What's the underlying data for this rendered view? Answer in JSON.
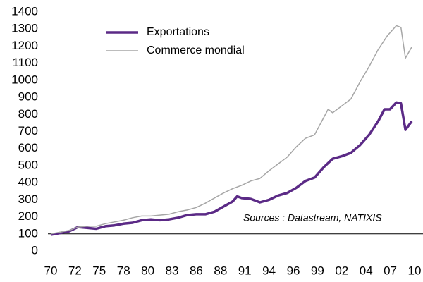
{
  "chart_data": {
    "type": "line",
    "annotation": "Sources : Datastream, NATIXIS",
    "legend": "top-left",
    "reference_line": 100,
    "xlim": [
      1970,
      2010
    ],
    "xticks": [
      {
        "value": 1970,
        "label": "70"
      },
      {
        "value": 1972.67,
        "label": "72"
      },
      {
        "value": 1975.33,
        "label": "75"
      },
      {
        "value": 1978,
        "label": "78"
      },
      {
        "value": 1980.67,
        "label": "80"
      },
      {
        "value": 1983.33,
        "label": "83"
      },
      {
        "value": 1986,
        "label": "86"
      },
      {
        "value": 1988.67,
        "label": "88"
      },
      {
        "value": 1991.33,
        "label": "91"
      },
      {
        "value": 1994,
        "label": "94"
      },
      {
        "value": 1996.67,
        "label": "96"
      },
      {
        "value": 1999.33,
        "label": "99"
      },
      {
        "value": 2002,
        "label": "02"
      },
      {
        "value": 2004.67,
        "label": "04"
      },
      {
        "value": 2007.33,
        "label": "07"
      },
      {
        "value": 2010,
        "label": "10"
      }
    ],
    "ylim": [
      0,
      1400
    ],
    "yticks": [
      0,
      100,
      200,
      300,
      400,
      500,
      600,
      700,
      800,
      900,
      1000,
      1100,
      1200,
      1300,
      1400
    ],
    "series": [
      {
        "name": "Exportations",
        "color": "#5b2a86",
        "width": 3.5,
        "x": [
          1970,
          1971,
          1972,
          1973,
          1974,
          1975,
          1976,
          1977,
          1978,
          1979,
          1980,
          1981,
          1982,
          1983,
          1984,
          1985,
          1986,
          1987,
          1988,
          1989,
          1990,
          1990.5,
          1991,
          1992,
          1993,
          1994,
          1995,
          1996,
          1997,
          1998,
          1999,
          2000,
          2001,
          2002,
          2003,
          2004,
          2005,
          2006,
          2006.7,
          2007.3,
          2008,
          2008.5,
          2009,
          2009.7
        ],
        "values": [
          95,
          105,
          115,
          140,
          135,
          130,
          145,
          150,
          160,
          165,
          180,
          185,
          180,
          185,
          195,
          210,
          215,
          215,
          230,
          260,
          290,
          320,
          310,
          305,
          285,
          300,
          325,
          340,
          370,
          410,
          430,
          490,
          540,
          555,
          575,
          620,
          680,
          760,
          830,
          830,
          870,
          865,
          710,
          760
        ]
      },
      {
        "name": "Commerce mondial",
        "color": "#a6a6a6",
        "width": 1.5,
        "x": [
          1970,
          1971,
          1972,
          1973,
          1974,
          1975,
          1976,
          1977,
          1978,
          1979,
          1980,
          1981,
          1982,
          1983,
          1984,
          1985,
          1986,
          1987,
          1988,
          1989,
          1990,
          1991,
          1992,
          1993,
          1994,
          1995,
          1996,
          1997,
          1998,
          1999,
          2000,
          2000.5,
          2001,
          2002,
          2003,
          2004,
          2005,
          2006,
          2007,
          2008,
          2008.5,
          2009,
          2009.7
        ],
        "values": [
          100,
          110,
          120,
          140,
          145,
          145,
          160,
          170,
          180,
          195,
          205,
          205,
          210,
          215,
          230,
          240,
          255,
          280,
          310,
          340,
          365,
          385,
          410,
          425,
          470,
          510,
          550,
          610,
          660,
          680,
          780,
          830,
          810,
          850,
          890,
          990,
          1080,
          1180,
          1260,
          1320,
          1310,
          1130,
          1195
        ]
      }
    ]
  }
}
